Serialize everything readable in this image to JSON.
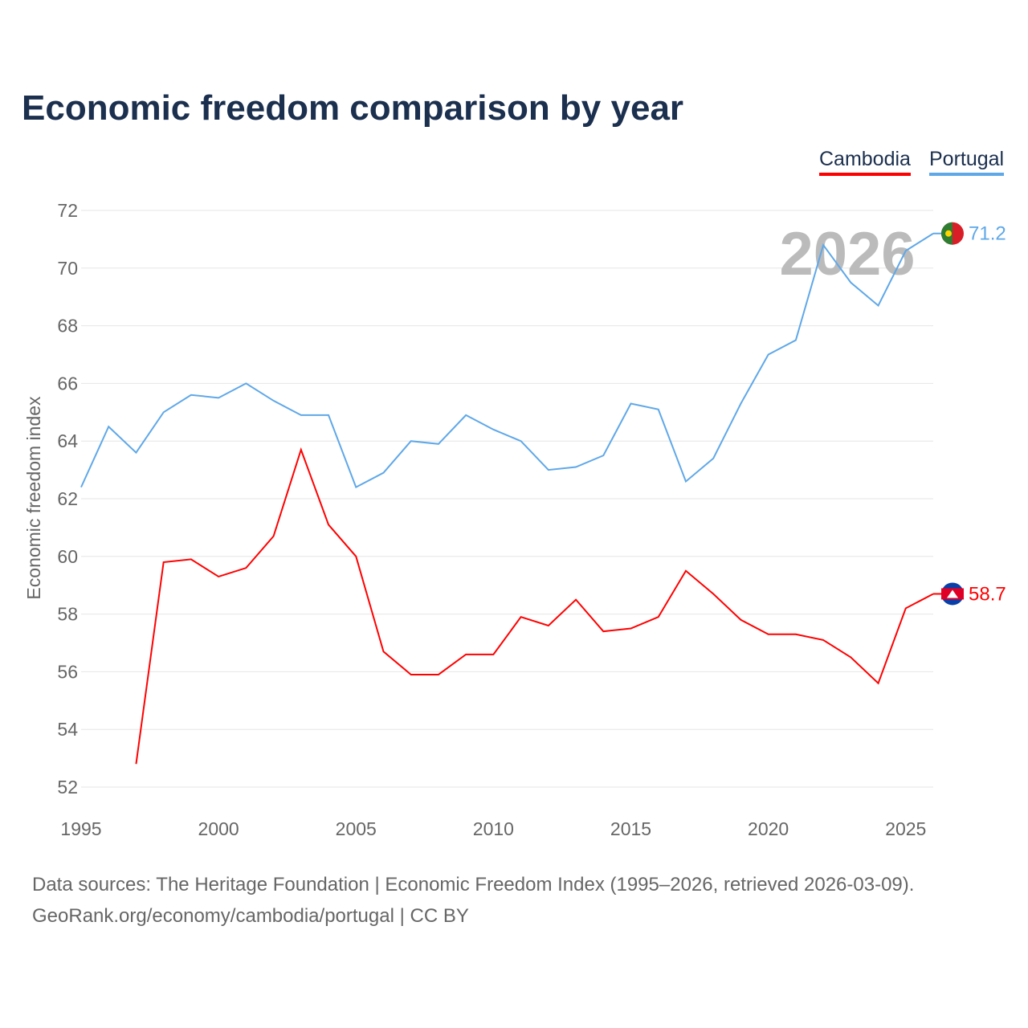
{
  "title": "Economic freedom comparison by year",
  "source_line1": "Data sources: The Heritage Foundation | Economic Freedom Index (1995–2026, retrieved 2026-03-09).",
  "source_line2": "GeoRank.org/economy/cambodia/portugal | CC BY",
  "chart_data": {
    "type": "line",
    "title": "Economic freedom comparison by year",
    "xlabel": "",
    "ylabel": "Economic freedom index",
    "xlim": [
      1995,
      2026
    ],
    "ylim": [
      52,
      72
    ],
    "xticks": [
      1995,
      2000,
      2005,
      2010,
      2015,
      2020,
      2025
    ],
    "yticks": [
      52,
      54,
      56,
      58,
      60,
      62,
      64,
      66,
      68,
      70,
      72
    ],
    "grid": true,
    "legend_placement": "top-right",
    "watermark_year": "2026",
    "series": [
      {
        "name": "Cambodia",
        "color": "#ff0000",
        "end_label": "58.7",
        "x": [
          1997,
          1998,
          1999,
          2000,
          2001,
          2002,
          2003,
          2004,
          2005,
          2006,
          2007,
          2008,
          2009,
          2010,
          2011,
          2012,
          2013,
          2014,
          2015,
          2016,
          2017,
          2018,
          2019,
          2020,
          2021,
          2022,
          2023,
          2024,
          2025,
          2026
        ],
        "values": [
          52.8,
          59.8,
          59.9,
          59.3,
          59.6,
          60.7,
          63.7,
          61.1,
          60.0,
          56.7,
          55.9,
          55.9,
          56.6,
          56.6,
          57.9,
          57.6,
          58.5,
          57.4,
          57.5,
          57.9,
          59.5,
          58.7,
          57.8,
          57.3,
          57.3,
          57.1,
          56.5,
          55.6,
          58.2,
          58.7
        ]
      },
      {
        "name": "Portugal",
        "color": "#5fa8e8",
        "end_label": "71.2",
        "x": [
          1995,
          1996,
          1997,
          1998,
          1999,
          2000,
          2001,
          2002,
          2003,
          2004,
          2005,
          2006,
          2007,
          2008,
          2009,
          2010,
          2011,
          2012,
          2013,
          2014,
          2015,
          2016,
          2017,
          2018,
          2019,
          2020,
          2021,
          2022,
          2023,
          2024,
          2025,
          2026
        ],
        "values": [
          62.4,
          64.5,
          63.6,
          65.0,
          65.6,
          65.5,
          66.0,
          65.4,
          64.9,
          64.9,
          62.4,
          62.9,
          64.0,
          63.9,
          64.9,
          64.4,
          64.0,
          63.0,
          63.1,
          63.5,
          65.3,
          65.1,
          62.6,
          63.4,
          65.3,
          67.0,
          67.5,
          70.8,
          69.5,
          68.7,
          70.6,
          71.2
        ]
      }
    ]
  }
}
